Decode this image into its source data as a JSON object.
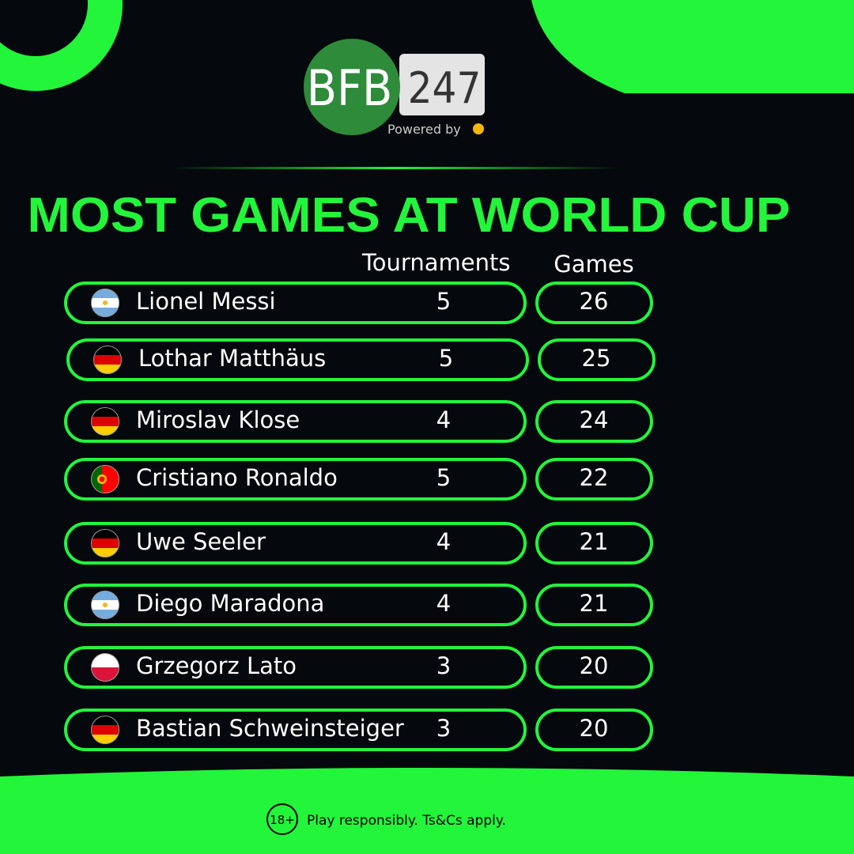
{
  "logo": {
    "left": "BFB",
    "right": "247",
    "powered_by": "Powered by"
  },
  "title": "MOST GAMES AT WORLD CUP",
  "table": {
    "headers": [
      "Tournaments",
      "Games"
    ],
    "rows": [
      [
        "Lionel Messi",
        "5",
        "26"
      ],
      [
        "Lothar Matthäus",
        "5",
        "25"
      ],
      [
        "Miroslav Klose",
        "4",
        "24"
      ],
      [
        "Cristiano Ronaldo",
        "5",
        "22"
      ],
      [
        "Uwe Seeler",
        "4",
        "21"
      ],
      [
        "Diego Maradona",
        "4",
        "21"
      ],
      [
        "Grzegorz Lato",
        "3",
        "20"
      ],
      [
        "Bastian Schweinsteiger",
        "3",
        "20"
      ]
    ]
  },
  "footer": {
    "badge": "18+",
    "text": "Play responsibly. Ts&Cs apply."
  }
}
